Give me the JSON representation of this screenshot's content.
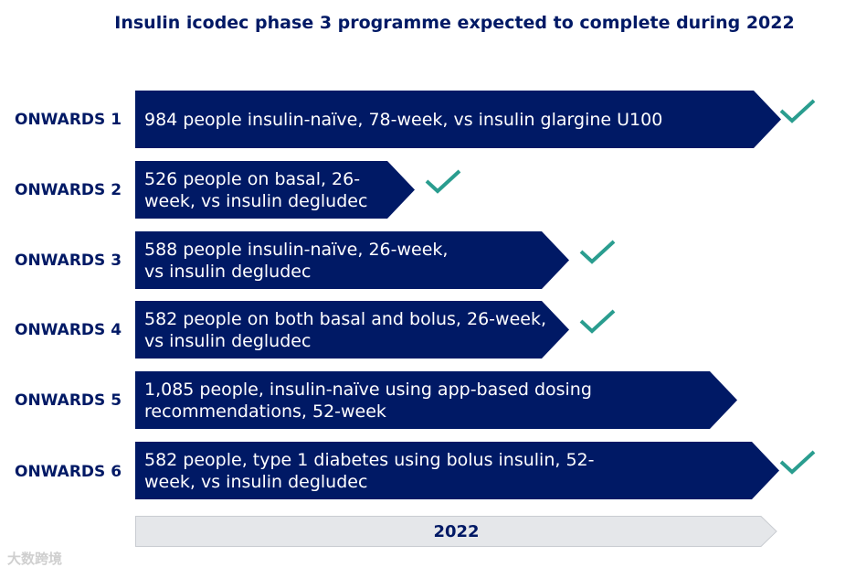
{
  "title": "Insulin icodec phase 3 programme expected to complete during 2022",
  "colors": {
    "navy": "#001965",
    "teal": "#2a9d8f",
    "axis_fill": "#e5e7ea",
    "axis_border": "#c9ccd1"
  },
  "trials": [
    {
      "label": "ONWARDS 1",
      "description": "984 people insulin-naïve, 78-week, vs insulin glargine U100",
      "completed": true
    },
    {
      "label": "ONWARDS 2",
      "description": "526 people on basal, 26-week, vs insulin degludec",
      "completed": true
    },
    {
      "label": "ONWARDS 3",
      "description": "588 people insulin-naïve, 26-week, vs insulin degludec",
      "completed": true
    },
    {
      "label": "ONWARDS 4",
      "description": "582 people on both basal and bolus, 26-week, vs insulin degludec",
      "completed": true
    },
    {
      "label": "ONWARDS 5",
      "description": "1,085 people, insulin-naïve using app-based dosing recommendations, 52-week",
      "completed": false
    },
    {
      "label": "ONWARDS 6",
      "description": "582 people, type 1 diabetes using bolus insulin, 52-week, vs insulin degludec",
      "completed": true
    }
  ],
  "timeline": {
    "year": "2022"
  },
  "watermark": "大数跨境"
}
